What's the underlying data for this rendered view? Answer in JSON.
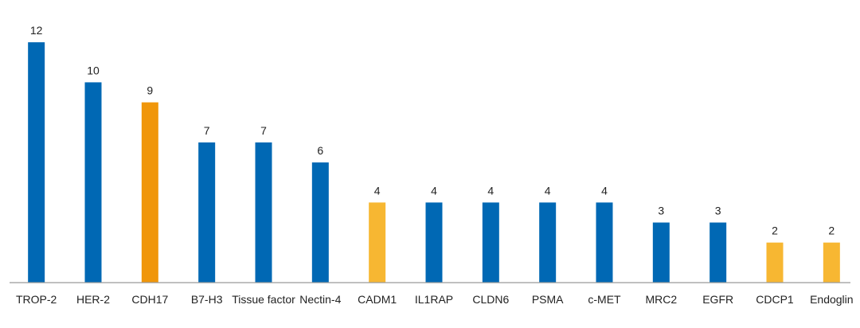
{
  "chart_data": {
    "type": "bar",
    "title": "",
    "xlabel": "",
    "ylabel": "",
    "ylim": [
      0,
      12.6
    ],
    "grid": false,
    "legend": "none",
    "categories": [
      "TROP-2",
      "HER-2",
      "CDH17",
      "B7-H3",
      "Tissue factor",
      "Nectin-4",
      "CADM1",
      "IL1RAP",
      "CLDN6",
      "PSMA",
      "c-MET",
      "MRC2",
      "EGFR",
      "CDCP1",
      "Endoglin"
    ],
    "values": [
      12,
      10,
      9,
      7,
      7,
      6,
      4,
      4,
      4,
      4,
      4,
      3,
      3,
      2,
      2
    ],
    "bar_colors": [
      "#0068b4",
      "#0068b4",
      "#f0960a",
      "#0068b4",
      "#0068b4",
      "#0068b4",
      "#f7b732",
      "#0068b4",
      "#0068b4",
      "#0068b4",
      "#0068b4",
      "#0068b4",
      "#0068b4",
      "#f7b732",
      "#f7b732"
    ],
    "axis_color": "#9a9a9a"
  }
}
